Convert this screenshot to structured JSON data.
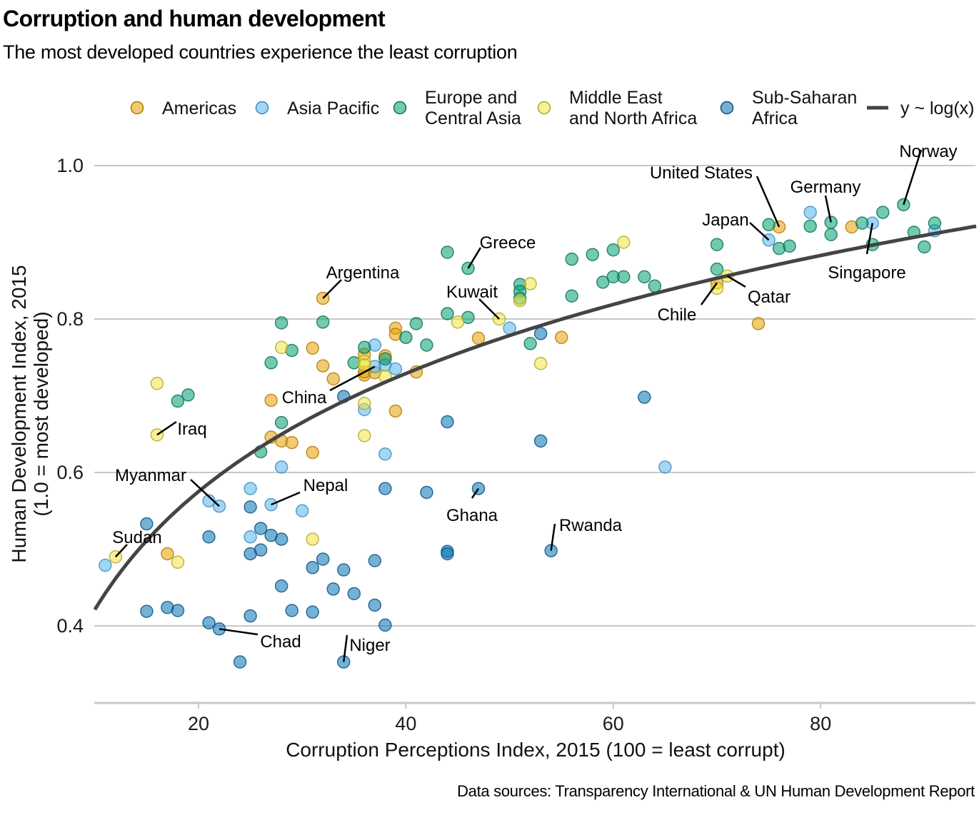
{
  "title": "Corruption and human development",
  "subtitle": "The most developed countries experience the least corruption",
  "source": "Data sources: Transparency International & UN Human Development Report",
  "chart_data": {
    "type": "scatter",
    "title": "Corruption and human development",
    "subtitle": "The most developed countries experience the least corruption",
    "xlabel": "Corruption Perceptions Index, 2015 (100 = least corrupt)",
    "ylabel": [
      "Human Development Index, 2015",
      "(1.0 = most developed)"
    ],
    "xlim": [
      10,
      95
    ],
    "ylim": [
      0.3,
      1.05
    ],
    "xticks": [
      20,
      40,
      60,
      80
    ],
    "yticks": [
      0.4,
      0.6,
      0.8,
      1.0
    ],
    "ytick_labels": [
      "0.4",
      "0.6",
      "0.8",
      "1.0"
    ],
    "grid": "horizontal",
    "legend": {
      "position": "top",
      "items": [
        {
          "key": "americas",
          "label": [
            "Americas"
          ],
          "color": "#E69F00"
        },
        {
          "key": "asia",
          "label": [
            "Asia Pacific"
          ],
          "color": "#56B4E9"
        },
        {
          "key": "europe",
          "label": [
            "Europe and",
            "Central Asia"
          ],
          "color": "#009E73"
        },
        {
          "key": "mena",
          "label": [
            "Middle East",
            "and North Africa"
          ],
          "color": "#F0E442"
        },
        {
          "key": "africa",
          "label": [
            "Sub-Saharan",
            "Africa"
          ],
          "color": "#0072B2"
        },
        {
          "key": "fit",
          "label": [
            "y ~ log(x)"
          ],
          "color": "#444444",
          "type": "line"
        }
      ]
    },
    "fit": {
      "formula": "y ~ log(x)",
      "intercept": -0.09,
      "slope": 0.222,
      "color": "#444444"
    },
    "series": [
      {
        "name": "Americas",
        "key": "americas",
        "points": [
          [
            17,
            0.494
          ],
          [
            27,
            0.694
          ],
          [
            27,
            0.646
          ],
          [
            28,
            0.641
          ],
          [
            29,
            0.639
          ],
          [
            31,
            0.762
          ],
          [
            31,
            0.626
          ],
          [
            32,
            0.827
          ],
          [
            32,
            0.739
          ],
          [
            33,
            0.722
          ],
          [
            36,
            0.754
          ],
          [
            36,
            0.727
          ],
          [
            36,
            0.731
          ],
          [
            37,
            0.73
          ],
          [
            38,
            0.752
          ],
          [
            39,
            0.788
          ],
          [
            39,
            0.78
          ],
          [
            39,
            0.68
          ],
          [
            41,
            0.731
          ],
          [
            47,
            0.775
          ],
          [
            55,
            0.776
          ],
          [
            70,
            0.847
          ],
          [
            74,
            0.794
          ],
          [
            76,
            0.92
          ],
          [
            83,
            0.92
          ]
        ]
      },
      {
        "name": "Asia Pacific",
        "key": "asia",
        "points": [
          [
            11,
            0.479
          ],
          [
            21,
            0.563
          ],
          [
            22,
            0.556
          ],
          [
            25,
            0.579
          ],
          [
            25,
            0.516
          ],
          [
            27,
            0.558
          ],
          [
            28,
            0.607
          ],
          [
            30,
            0.55
          ],
          [
            36,
            0.682
          ],
          [
            37,
            0.766
          ],
          [
            37,
            0.738
          ],
          [
            38,
            0.74
          ],
          [
            38,
            0.624
          ],
          [
            39,
            0.735
          ],
          [
            50,
            0.788
          ],
          [
            65,
            0.607
          ],
          [
            75,
            0.903
          ],
          [
            79,
            0.939
          ],
          [
            85,
            0.925
          ],
          [
            91,
            0.915
          ]
        ]
      },
      {
        "name": "Europe and Central Asia",
        "key": "europe",
        "points": [
          [
            18,
            0.693
          ],
          [
            19,
            0.701
          ],
          [
            26,
            0.627
          ],
          [
            27,
            0.743
          ],
          [
            28,
            0.795
          ],
          [
            28,
            0.665
          ],
          [
            29,
            0.759
          ],
          [
            32,
            0.796
          ],
          [
            35,
            0.743
          ],
          [
            36,
            0.763
          ],
          [
            38,
            0.748
          ],
          [
            40,
            0.776
          ],
          [
            41,
            0.794
          ],
          [
            42,
            0.766
          ],
          [
            44,
            0.887
          ],
          [
            44,
            0.807
          ],
          [
            46,
            0.866
          ],
          [
            46,
            0.802
          ],
          [
            51,
            0.845
          ],
          [
            51,
            0.836
          ],
          [
            51,
            0.827
          ],
          [
            52,
            0.768
          ],
          [
            56,
            0.878
          ],
          [
            56,
            0.83
          ],
          [
            58,
            0.884
          ],
          [
            59,
            0.848
          ],
          [
            60,
            0.89
          ],
          [
            60,
            0.855
          ],
          [
            61,
            0.855
          ],
          [
            63,
            0.855
          ],
          [
            64,
            0.843
          ],
          [
            70,
            0.897
          ],
          [
            70,
            0.865
          ],
          [
            75,
            0.923
          ],
          [
            76,
            0.892
          ],
          [
            77,
            0.895
          ],
          [
            79,
            0.921
          ],
          [
            81,
            0.926
          ],
          [
            81,
            0.91
          ],
          [
            84,
            0.925
          ],
          [
            85,
            0.897
          ],
          [
            86,
            0.939
          ],
          [
            88,
            0.949
          ],
          [
            89,
            0.913
          ],
          [
            90,
            0.894
          ],
          [
            91,
            0.925
          ]
        ]
      },
      {
        "name": "Middle East and North Africa",
        "key": "mena",
        "points": [
          [
            12,
            0.49
          ],
          [
            16,
            0.716
          ],
          [
            16,
            0.649
          ],
          [
            18,
            0.483
          ],
          [
            28,
            0.763
          ],
          [
            31,
            0.513
          ],
          [
            36,
            0.745
          ],
          [
            36,
            0.74
          ],
          [
            36,
            0.69
          ],
          [
            36,
            0.648
          ],
          [
            38,
            0.725
          ],
          [
            45,
            0.796
          ],
          [
            49,
            0.8
          ],
          [
            51,
            0.824
          ],
          [
            52,
            0.846
          ],
          [
            53,
            0.742
          ],
          [
            61,
            0.9
          ],
          [
            70,
            0.84
          ],
          [
            71,
            0.856
          ]
        ]
      },
      {
        "name": "Sub-Saharan Africa",
        "key": "africa",
        "points": [
          [
            15,
            0.533
          ],
          [
            15,
            0.419
          ],
          [
            17,
            0.424
          ],
          [
            18,
            0.42
          ],
          [
            21,
            0.516
          ],
          [
            21,
            0.404
          ],
          [
            22,
            0.396
          ],
          [
            24,
            0.353
          ],
          [
            25,
            0.555
          ],
          [
            25,
            0.494
          ],
          [
            25,
            0.413
          ],
          [
            26,
            0.527
          ],
          [
            26,
            0.499
          ],
          [
            27,
            0.518
          ],
          [
            28,
            0.513
          ],
          [
            28,
            0.452
          ],
          [
            29,
            0.42
          ],
          [
            31,
            0.476
          ],
          [
            31,
            0.418
          ],
          [
            32,
            0.487
          ],
          [
            33,
            0.448
          ],
          [
            34,
            0.699
          ],
          [
            34,
            0.473
          ],
          [
            34,
            0.353
          ],
          [
            35,
            0.442
          ],
          [
            37,
            0.485
          ],
          [
            37,
            0.427
          ],
          [
            38,
            0.579
          ],
          [
            38,
            0.401
          ],
          [
            42,
            0.574
          ],
          [
            44,
            0.666
          ],
          [
            44,
            0.497
          ],
          [
            44,
            0.494
          ],
          [
            47,
            0.579
          ],
          [
            53,
            0.781
          ],
          [
            53,
            0.641
          ],
          [
            54,
            0.498
          ],
          [
            63,
            0.698
          ]
        ]
      }
    ],
    "annotations": [
      {
        "label": "Norway",
        "x": 88,
        "y": 0.949
      },
      {
        "label": "United States",
        "x": 76,
        "y": 0.92
      },
      {
        "label": "Germany",
        "x": 81,
        "y": 0.926
      },
      {
        "label": "Japan",
        "x": 75,
        "y": 0.903
      },
      {
        "label": "Singapore",
        "x": 85,
        "y": 0.925
      },
      {
        "label": "Qatar",
        "x": 71,
        "y": 0.856
      },
      {
        "label": "Chile",
        "x": 70,
        "y": 0.847
      },
      {
        "label": "Greece",
        "x": 46,
        "y": 0.866
      },
      {
        "label": "Kuwait",
        "x": 49,
        "y": 0.8
      },
      {
        "label": "Argentina",
        "x": 32,
        "y": 0.827
      },
      {
        "label": "China",
        "x": 37,
        "y": 0.738
      },
      {
        "label": "Iraq",
        "x": 16,
        "y": 0.649
      },
      {
        "label": "Myanmar",
        "x": 22,
        "y": 0.556
      },
      {
        "label": "Nepal",
        "x": 27,
        "y": 0.558
      },
      {
        "label": "Sudan",
        "x": 12,
        "y": 0.49
      },
      {
        "label": "Ghana",
        "x": 47,
        "y": 0.579
      },
      {
        "label": "Rwanda",
        "x": 54,
        "y": 0.498
      },
      {
        "label": "Chad",
        "x": 22,
        "y": 0.396
      },
      {
        "label": "Niger",
        "x": 34,
        "y": 0.353
      }
    ]
  }
}
